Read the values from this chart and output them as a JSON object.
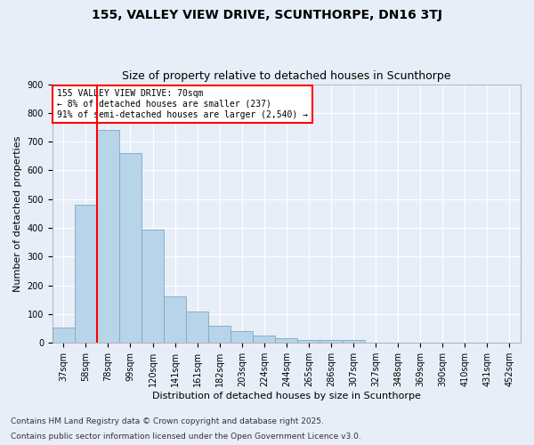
{
  "title1": "155, VALLEY VIEW DRIVE, SCUNTHORPE, DN16 3TJ",
  "title2": "Size of property relative to detached houses in Scunthorpe",
  "xlabel": "Distribution of detached houses by size in Scunthorpe",
  "ylabel": "Number of detached properties",
  "categories": [
    "37sqm",
    "58sqm",
    "78sqm",
    "99sqm",
    "120sqm",
    "141sqm",
    "161sqm",
    "182sqm",
    "203sqm",
    "224sqm",
    "244sqm",
    "265sqm",
    "286sqm",
    "307sqm",
    "327sqm",
    "348sqm",
    "369sqm",
    "390sqm",
    "410sqm",
    "431sqm",
    "452sqm"
  ],
  "values": [
    55,
    480,
    740,
    660,
    395,
    163,
    108,
    60,
    42,
    27,
    18,
    10,
    10,
    9,
    2,
    2,
    2,
    2,
    2,
    2,
    2
  ],
  "bar_color": "#b8d4e8",
  "bar_edge_color": "#7aaac8",
  "vline_color": "red",
  "annotation_text": "155 VALLEY VIEW DRIVE: 70sqm\n← 8% of detached houses are smaller (237)\n91% of semi-detached houses are larger (2,540) →",
  "annotation_box_color": "white",
  "annotation_box_edge_color": "red",
  "ylim": [
    0,
    900
  ],
  "yticks": [
    0,
    100,
    200,
    300,
    400,
    500,
    600,
    700,
    800,
    900
  ],
  "footer1": "Contains HM Land Registry data © Crown copyright and database right 2025.",
  "footer2": "Contains public sector information licensed under the Open Government Licence v3.0.",
  "bg_color": "#e8eef8",
  "plot_bg_color": "#e8eef8",
  "title1_fontsize": 10,
  "title2_fontsize": 9,
  "axis_label_fontsize": 8,
  "tick_fontsize": 7,
  "footer_fontsize": 6.5,
  "annotation_fontsize": 7
}
